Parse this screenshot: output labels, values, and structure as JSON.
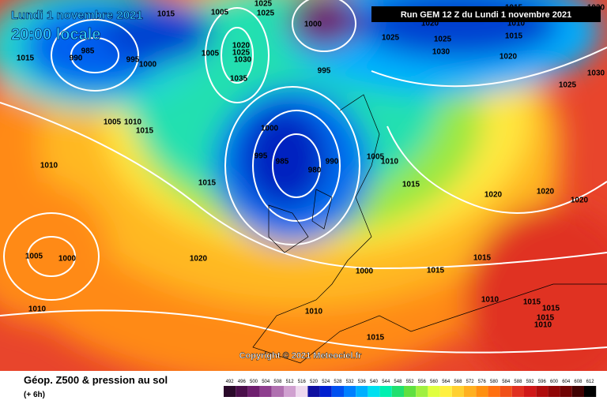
{
  "header": {
    "title": "Lundi 1 novembre 2021",
    "time": "20:00 locale",
    "run": "Run GEM 12 Z du Lundi 1 novembre 2021",
    "copyright": "Copyright © 2021 Meteociel.fr"
  },
  "legend": {
    "title": "Géop. Z500 & pression au sol",
    "subtitle": "(+ 6h)",
    "values": [
      492,
      496,
      500,
      504,
      508,
      512,
      516,
      520,
      524,
      528,
      532,
      536,
      540,
      544,
      548,
      552,
      556,
      560,
      564,
      568,
      572,
      576,
      580,
      584,
      588,
      592,
      596,
      600,
      604,
      608,
      612
    ],
    "colors": [
      "#2a0a2a",
      "#4b0f4b",
      "#6e1f6e",
      "#8e3e8e",
      "#b070b0",
      "#d0a0d0",
      "#eed8ee",
      "#1010a0",
      "#0020d0",
      "#0050f0",
      "#0080ff",
      "#00b0ff",
      "#00e0f0",
      "#00f0b0",
      "#20e070",
      "#60e040",
      "#a0f040",
      "#e0ff40",
      "#fff040",
      "#ffd030",
      "#ffb020",
      "#ff9010",
      "#ff7010",
      "#f05018",
      "#e03020",
      "#d01818",
      "#b00c0c",
      "#900606",
      "#700404",
      "#400202",
      "#000000"
    ]
  },
  "isobar_labels": [
    "1015",
    "1005",
    "1025",
    "1025",
    "1000",
    "1020",
    "1025",
    "1015",
    "1010",
    "1015",
    "1030",
    "985",
    "990",
    "995",
    "1000",
    "1015",
    "1005",
    "1020",
    "1025",
    "1030",
    "1035",
    "995",
    "1025",
    "1030",
    "1020",
    "1025",
    "1030",
    "1005",
    "1010",
    "1015",
    "1000",
    "995",
    "985",
    "980",
    "990",
    "1010",
    "1015",
    "1005",
    "1010",
    "1015",
    "1020",
    "1020",
    "1020",
    "1005",
    "1000",
    "1020",
    "1015",
    "1000",
    "1015",
    "1010",
    "1010",
    "1015",
    "1015",
    "1015",
    "1010",
    "1010",
    "1015"
  ]
}
